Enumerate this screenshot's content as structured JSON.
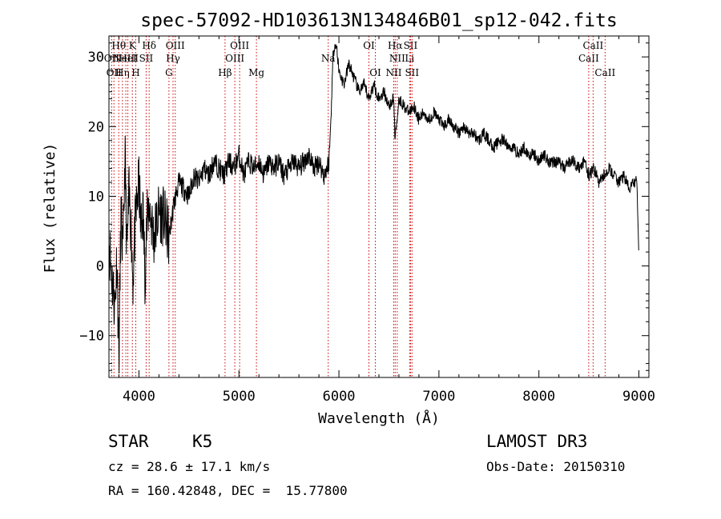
{
  "chart_data": {
    "type": "line",
    "title": "spec-57092-HD103613N134846B01_sp12-042.fits",
    "xlabel": "Wavelength (Å)",
    "ylabel": "Flux (relative)",
    "xlim": [
      3700,
      9100
    ],
    "ylim": [
      -16,
      33
    ],
    "x_ticks": [
      4000,
      5000,
      6000,
      7000,
      8000,
      9000
    ],
    "y_ticks": [
      -10,
      0,
      10,
      20,
      30
    ],
    "x_tick_labels": [
      "4000",
      "5000",
      "6000",
      "7000",
      "8000",
      "9000"
    ],
    "y_tick_labels": [
      "−10",
      "0",
      "10",
      "20",
      "30"
    ],
    "series": [
      {
        "name": "flux",
        "x": [
          3700,
          3720,
          3740,
          3760,
          3780,
          3800,
          3820,
          3840,
          3860,
          3880,
          3900,
          3920,
          3940,
          3960,
          3980,
          4000,
          4020,
          4040,
          4060,
          4080,
          4100,
          4150,
          4200,
          4250,
          4300,
          4350,
          4400,
          4450,
          4500,
          4550,
          4600,
          4650,
          4700,
          4750,
          4800,
          4850,
          4900,
          4950,
          5000,
          5050,
          5100,
          5150,
          5200,
          5250,
          5300,
          5350,
          5400,
          5450,
          5500,
          5550,
          5600,
          5650,
          5700,
          5750,
          5800,
          5850,
          5880,
          5900,
          5920,
          5940,
          5960,
          5980,
          6000,
          6050,
          6100,
          6150,
          6200,
          6250,
          6300,
          6350,
          6400,
          6450,
          6500,
          6550,
          6560,
          6600,
          6650,
          6700,
          6750,
          6800,
          6850,
          6900,
          6950,
          7000,
          7050,
          7100,
          7150,
          7200,
          7250,
          7300,
          7350,
          7400,
          7450,
          7500,
          7550,
          7600,
          7650,
          7700,
          7750,
          7800,
          7850,
          7900,
          7950,
          8000,
          8050,
          8100,
          8150,
          8200,
          8250,
          8300,
          8350,
          8400,
          8450,
          8500,
          8550,
          8600,
          8650,
          8700,
          8750,
          8800,
          8850,
          8900,
          8950,
          8980,
          9000
        ],
        "values": [
          4,
          0,
          -3,
          -6,
          2,
          -14,
          8,
          1,
          16,
          2,
          10,
          6,
          -2,
          5,
          9,
          12,
          5,
          8,
          -1,
          6,
          9,
          4,
          8,
          7,
          4,
          9,
          12,
          11,
          10,
          13,
          12,
          14,
          13,
          15,
          14,
          13,
          15,
          14,
          16,
          13,
          15,
          14,
          15,
          13,
          15,
          14,
          15,
          13,
          14,
          15,
          14,
          15,
          16,
          14,
          15,
          13,
          14,
          15,
          21,
          30,
          32,
          31,
          28,
          26,
          29,
          27,
          25,
          26,
          24,
          26,
          24,
          25,
          23,
          24,
          18,
          24,
          23,
          22,
          23,
          21,
          22,
          21,
          22,
          21,
          20,
          21,
          20,
          19,
          20,
          19,
          19,
          18,
          19,
          18,
          17,
          18,
          18,
          17,
          17,
          16,
          17,
          16,
          16,
          15,
          16,
          15,
          15,
          15,
          14,
          15,
          15,
          14,
          15,
          13,
          14,
          12,
          13,
          14,
          13,
          12,
          13,
          11,
          12,
          12,
          1
        ]
      }
    ],
    "lines": [
      {
        "wl": 3727,
        "label": "OII",
        "row": 2
      },
      {
        "wl": 3750,
        "label": "OII",
        "row": 3
      },
      {
        "wl": 3798,
        "label": "Hθ",
        "row": 1
      },
      {
        "wl": 3835,
        "label": "Hη",
        "row": 3
      },
      {
        "wl": 3869,
        "label": "NeIII",
        "row": 2
      },
      {
        "wl": 3889,
        "label": "HeI",
        "row": 2
      },
      {
        "wl": 3934,
        "label": "K",
        "row": 1
      },
      {
        "wl": 3968,
        "label": "H",
        "row": 3
      },
      {
        "wl": 4072,
        "label": "SII",
        "row": 2
      },
      {
        "wl": 4102,
        "label": "Hδ",
        "row": 1
      },
      {
        "wl": 4300,
        "label": "G",
        "row": 3
      },
      {
        "wl": 4341,
        "label": "Hγ",
        "row": 2
      },
      {
        "wl": 4363,
        "label": "OIII",
        "row": 1
      },
      {
        "wl": 4861,
        "label": "Hβ",
        "row": 3
      },
      {
        "wl": 4959,
        "label": "OIII",
        "row": 2
      },
      {
        "wl": 5007,
        "label": "OIII",
        "row": 1
      },
      {
        "wl": 5175,
        "label": "Mg",
        "row": 3
      },
      {
        "wl": 5893,
        "label": "Na",
        "row": 2
      },
      {
        "wl": 6300,
        "label": "OI",
        "row": 1
      },
      {
        "wl": 6364,
        "label": "OI",
        "row": 3
      },
      {
        "wl": 6548,
        "label": "NII",
        "row": 3
      },
      {
        "wl": 6563,
        "label": "Hα",
        "row": 1
      },
      {
        "wl": 6583,
        "label": "NII",
        "row": 2
      },
      {
        "wl": 6707,
        "label": "Li",
        "row": 2
      },
      {
        "wl": 6716,
        "label": "SII",
        "row": 1
      },
      {
        "wl": 6731,
        "label": "SII",
        "row": 3
      },
      {
        "wl": 8498,
        "label": "CaII",
        "row": 2
      },
      {
        "wl": 8542,
        "label": "CaII",
        "row": 1
      },
      {
        "wl": 8662,
        "label": "CaII",
        "row": 3
      }
    ]
  },
  "info": {
    "object_class": "STAR",
    "subclass": "K5",
    "survey": "LAMOST DR3",
    "cz": "cz = 28.6 ± 17.1 km/s",
    "obs_date": "Obs-Date: 20150310",
    "coords": "RA = 160.42848, DEC =  15.77800"
  }
}
